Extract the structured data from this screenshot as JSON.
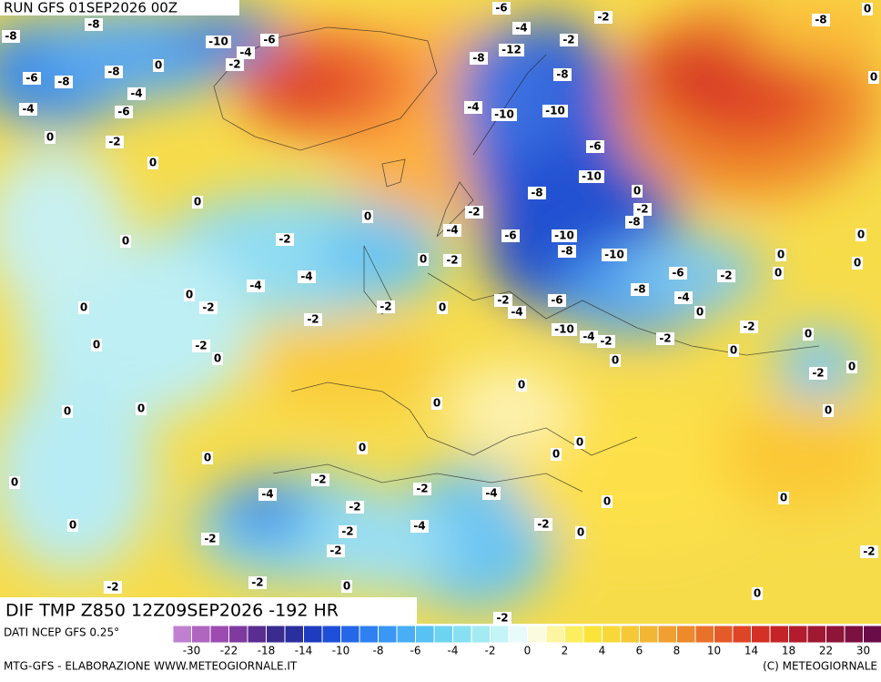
{
  "header": {
    "run": "RUN GFS 01SEP2026 00Z",
    "product": "DIF TMP Z850 12Z09SEP2026 -192 HR"
  },
  "footer": {
    "source": "DATI NCEP GFS 0.25°",
    "credit": "MTG-GFS - ELABORAZIONE WWW.METEOGIORNALE.IT",
    "copyright": "(C) METEOGIORNALE"
  },
  "legend": {
    "labels": [
      -30,
      -22,
      -18,
      -14,
      -10,
      -8,
      -6,
      -4,
      -2,
      0,
      2,
      4,
      6,
      8,
      10,
      14,
      18,
      22,
      30
    ],
    "colors": [
      "#c080d0",
      "#b066c0",
      "#9c4cb0",
      "#7f3aa0",
      "#5a2d92",
      "#3a2b8f",
      "#2a2fa0",
      "#1f3cc0",
      "#1e4fd8",
      "#2468e8",
      "#2f80f0",
      "#3a98f5",
      "#48aef6",
      "#58c2f5",
      "#6dd3f3",
      "#86e0f2",
      "#a3ebf3",
      "#c4f4f6",
      "#e8fbfb",
      "#fbfbe0",
      "#fdf5a0",
      "#fdee60",
      "#fbe43a",
      "#f8d838",
      "#f5c836",
      "#f2b634",
      "#f0a030",
      "#ec8a2c",
      "#e8722a",
      "#e45a28",
      "#de4426",
      "#d43026",
      "#c42428",
      "#b21c2c",
      "#a01832",
      "#8e1438",
      "#7c1040",
      "#6a0c48"
    ]
  },
  "contour_labels": [
    -8,
    -8,
    -10,
    -4,
    -6,
    -2,
    -8,
    -6,
    -8,
    -4,
    -6,
    -4,
    0,
    0,
    -2,
    0,
    0,
    0,
    0,
    -2,
    -4,
    -4,
    0,
    -2,
    0,
    -2,
    -2,
    0,
    0,
    -2,
    0,
    0,
    0,
    0,
    0,
    -2,
    -4,
    -2,
    -2,
    -4,
    -4,
    -2,
    -2,
    -2,
    0,
    -2,
    -2,
    -2,
    0,
    -2,
    0,
    0,
    0,
    -2,
    0,
    0,
    -2,
    0,
    -6,
    -4,
    -2,
    -12,
    -8,
    -8,
    -4,
    -10,
    -10,
    -6,
    -10,
    -8,
    0,
    -2,
    -8,
    -2,
    -4,
    -6,
    -10,
    -8,
    -10,
    -2,
    0,
    -6,
    -2,
    -8,
    -4,
    -2,
    -4,
    -6,
    0,
    -2,
    -10,
    -4,
    -2,
    -2,
    0,
    0,
    0,
    0,
    0,
    0,
    0,
    0,
    0,
    0,
    0,
    0,
    -8,
    0,
    0,
    -2
  ]
}
